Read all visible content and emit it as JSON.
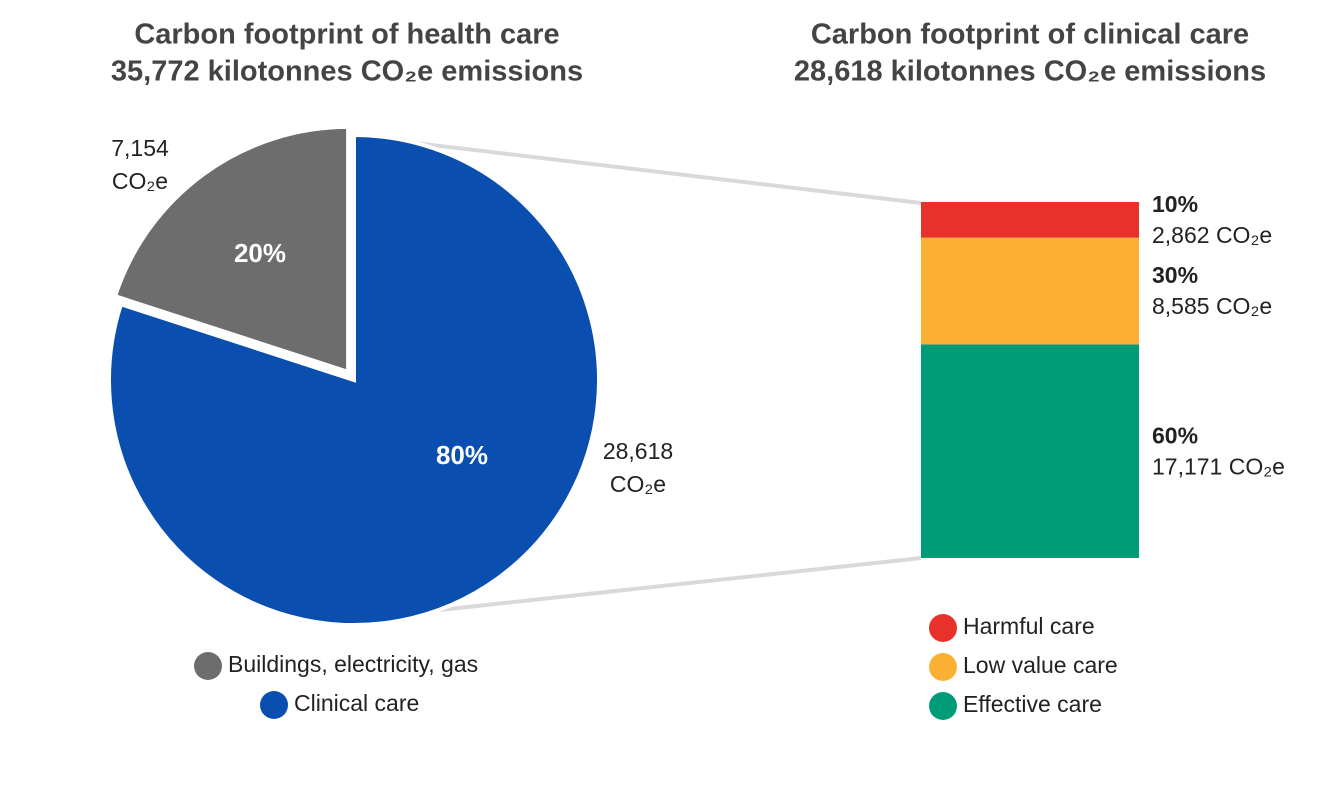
{
  "chart_data": [
    {
      "type": "pie",
      "title": "Carbon footprint of health care",
      "subtitle": "35,772 kilotonnes CO₂e emissions",
      "categories": [
        "Buildings, electricity, gas",
        "Clinical care"
      ],
      "values": [
        20,
        80
      ],
      "value_labels": [
        "20%",
        "80%"
      ],
      "amounts": [
        7154,
        28618
      ],
      "amount_labels": [
        "7,154 CO₂e",
        "28,618 CO₂e"
      ],
      "colors": [
        "#6d6d6d",
        "#0a4fb0"
      ]
    },
    {
      "type": "stacked-bar",
      "title": "Carbon footprint of clinical care",
      "subtitle": "28,618 kilotonnes CO₂e emissions",
      "series": [
        {
          "name": "Harmful care",
          "color": "#e8312a",
          "values": [
            10
          ],
          "value_labels": [
            "10%"
          ],
          "amounts": [
            2862
          ],
          "amount_labels": [
            "2,862 CO₂e"
          ]
        },
        {
          "name": "Low value care",
          "color": "#fbb034",
          "values": [
            30
          ],
          "value_labels": [
            "30%"
          ],
          "amounts": [
            8585
          ],
          "amount_labels": [
            "8,585 CO₂e"
          ]
        },
        {
          "name": "Effective care",
          "color": "#009b77",
          "values": [
            60
          ],
          "value_labels": [
            "60%"
          ],
          "amounts": [
            17171
          ],
          "amount_labels": [
            "17,171 CO₂e"
          ]
        }
      ]
    }
  ]
}
